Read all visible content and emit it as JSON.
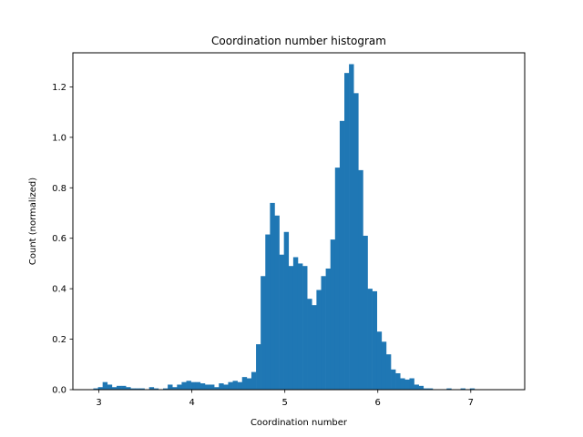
{
  "chart_data": {
    "type": "bar",
    "title": "Coordination number histogram",
    "xlabel": "Coordination number",
    "ylabel": "Count (normalized)",
    "xlim": [
      2.72,
      7.58
    ],
    "ylim": [
      0,
      1.335
    ],
    "x_ticks": [
      3,
      4,
      5,
      6,
      7
    ],
    "x_tick_labels": [
      "3",
      "4",
      "5",
      "6",
      "7"
    ],
    "y_ticks": [
      0.0,
      0.2,
      0.4,
      0.6,
      0.8,
      1.0,
      1.2
    ],
    "y_tick_labels": [
      "0.0",
      "0.2",
      "0.4",
      "0.6",
      "0.8",
      "1.0",
      "1.2"
    ],
    "bin_width": 0.05,
    "bin_start": 2.94,
    "values": [
      0.005,
      0.01,
      0.03,
      0.02,
      0.01,
      0.015,
      0.015,
      0.01,
      0.005,
      0.005,
      0.005,
      0.0,
      0.01,
      0.005,
      0.0,
      0.005,
      0.02,
      0.01,
      0.02,
      0.03,
      0.035,
      0.03,
      0.03,
      0.025,
      0.02,
      0.02,
      0.01,
      0.025,
      0.02,
      0.03,
      0.035,
      0.03,
      0.05,
      0.045,
      0.07,
      0.18,
      0.45,
      0.615,
      0.74,
      0.69,
      0.535,
      0.625,
      0.49,
      0.525,
      0.5,
      0.49,
      0.36,
      0.335,
      0.395,
      0.45,
      0.48,
      0.595,
      0.88,
      1.065,
      1.255,
      1.29,
      1.175,
      0.87,
      0.61,
      0.4,
      0.39,
      0.23,
      0.19,
      0.14,
      0.08,
      0.065,
      0.045,
      0.04,
      0.045,
      0.02,
      0.015,
      0.005,
      0.005,
      0.0,
      0.0,
      0.0,
      0.005,
      0.0,
      0.0,
      0.005,
      0.0,
      0.005
    ],
    "bar_color": "#1f77b4",
    "grid": false,
    "legend": "none"
  }
}
